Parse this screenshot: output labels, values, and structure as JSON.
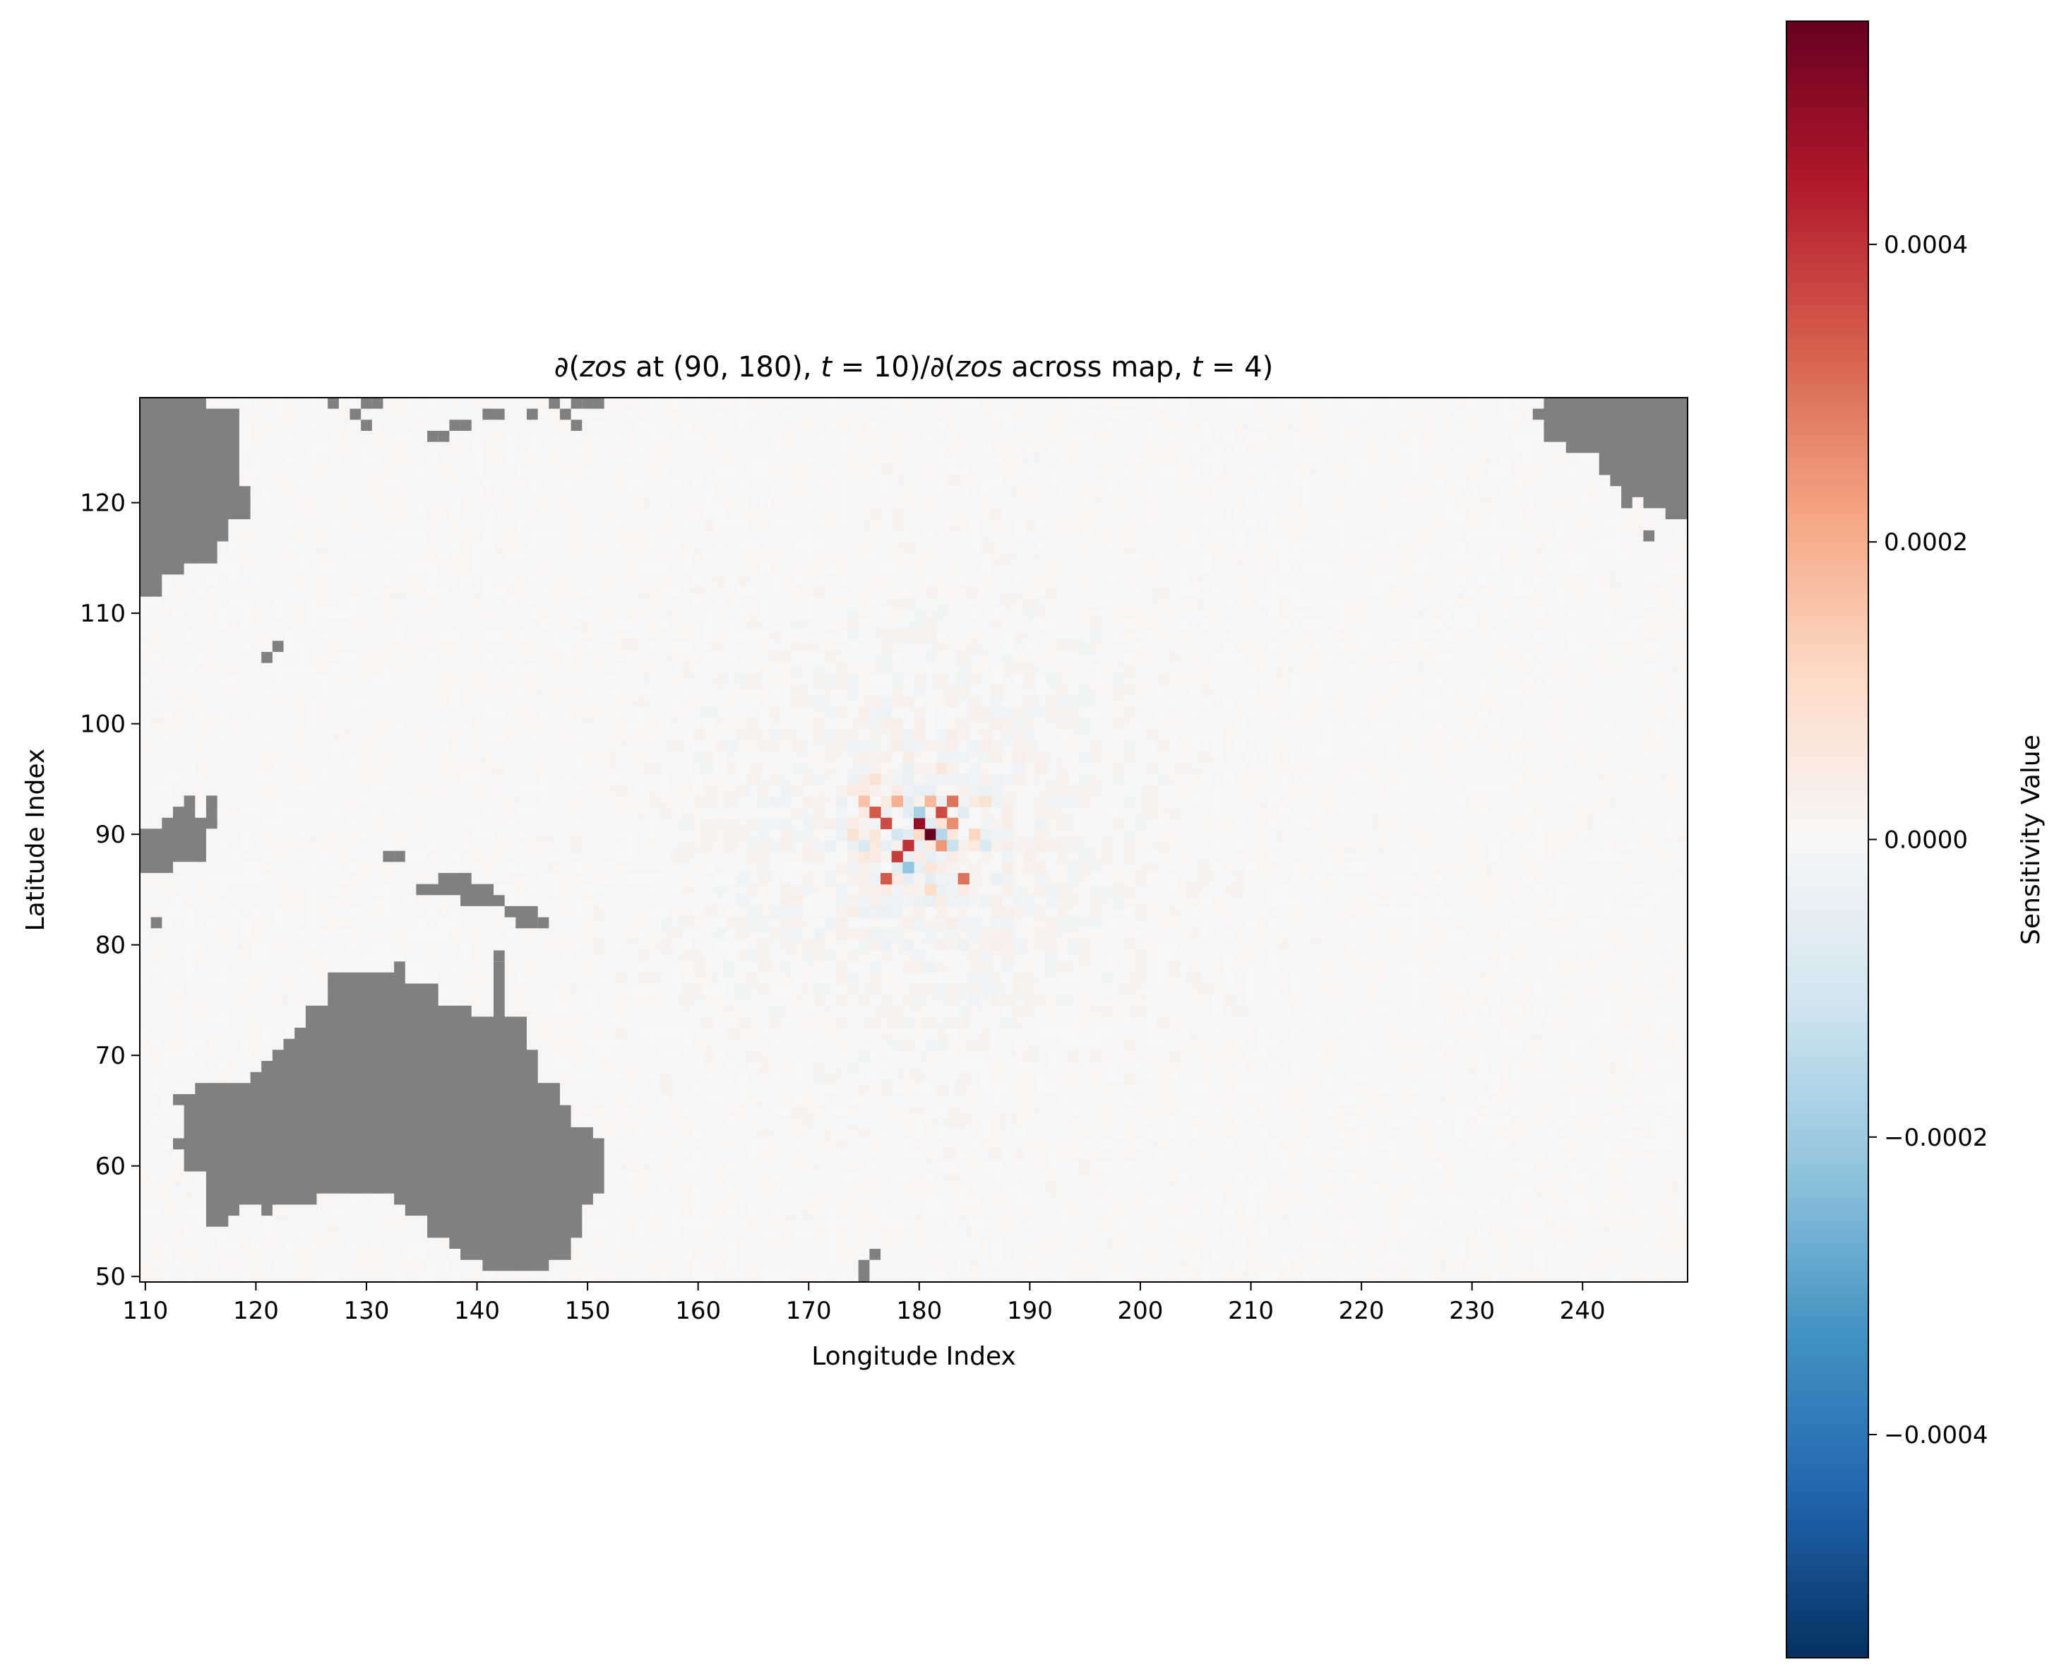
{
  "chart_data": {
    "type": "heatmap",
    "title_parts": {
      "p1": "∂(",
      "v1": "zos",
      "p2": " at ",
      "p3": "(90, 180), ",
      "v2": "t",
      "p4": " = 10)/∂(",
      "v3": "zos",
      "p5": " across map, ",
      "v4": "t",
      "p6": " = 4)"
    },
    "xlabel": "Longitude Index",
    "ylabel": "Latitude Index",
    "colorbar_label": "Sensitivity Value",
    "colormap": "RdBu_r",
    "land_color": "#808080",
    "xlim": [
      109.5,
      249.5
    ],
    "ylim": [
      49.5,
      129.5
    ],
    "clim": [
      -0.00055,
      0.00055
    ],
    "x_ticks": [
      110,
      120,
      130,
      140,
      150,
      160,
      170,
      180,
      190,
      200,
      210,
      220,
      230,
      240
    ],
    "y_ticks": [
      50,
      60,
      70,
      80,
      90,
      100,
      110,
      120
    ],
    "colorbar_ticks": [
      0.0004,
      0.0002,
      0.0,
      -0.0002,
      -0.0004
    ],
    "colorbar_tick_labels": [
      "0.0004",
      "0.0002",
      "0.0000",
      "−0.0002",
      "−0.0004"
    ],
    "source_point": {
      "lon": 180,
      "lat": 90
    },
    "sensitivity_hotspots": [
      {
        "lon": 181,
        "lat": 90,
        "value": 0.00055
      },
      {
        "lon": 180,
        "lat": 91,
        "value": 0.00048
      },
      {
        "lon": 179,
        "lat": 89,
        "value": 0.0004
      },
      {
        "lon": 178,
        "lat": 88,
        "value": 0.00038
      },
      {
        "lon": 177,
        "lat": 91,
        "value": 0.00036
      },
      {
        "lon": 176,
        "lat": 92,
        "value": 0.00034
      },
      {
        "lon": 182,
        "lat": 92,
        "value": 0.00036
      },
      {
        "lon": 183,
        "lat": 93,
        "value": 0.0003
      },
      {
        "lon": 183,
        "lat": 91,
        "value": 0.00026
      },
      {
        "lon": 182,
        "lat": 89,
        "value": 0.00024
      },
      {
        "lon": 184,
        "lat": 86,
        "value": 0.0003
      },
      {
        "lon": 177,
        "lat": 86,
        "value": 0.00034
      },
      {
        "lon": 178,
        "lat": 93,
        "value": 0.0002
      },
      {
        "lon": 175,
        "lat": 93,
        "value": 0.00016
      },
      {
        "lon": 181,
        "lat": 93,
        "value": 0.00018
      },
      {
        "lon": 185,
        "lat": 90,
        "value": 0.00012
      },
      {
        "lon": 179,
        "lat": 87,
        "value": -0.00022
      },
      {
        "lon": 180,
        "lat": 92,
        "value": -0.00018
      },
      {
        "lon": 182,
        "lat": 90,
        "value": -0.00016
      },
      {
        "lon": 183,
        "lat": 89,
        "value": -0.00012
      },
      {
        "lon": 178,
        "lat": 90,
        "value": -0.0001
      },
      {
        "lon": 175,
        "lat": 89,
        "value": -8e-05
      },
      {
        "lon": 186,
        "lat": 89,
        "value": -8e-05
      },
      {
        "lon": 184,
        "lat": 92,
        "value": -6e-05
      },
      {
        "lon": 181,
        "lat": 85,
        "value": 0.0001
      },
      {
        "lon": 176,
        "lat": 95,
        "value": 8e-05
      },
      {
        "lon": 182,
        "lat": 96,
        "value": 6e-05
      },
      {
        "lon": 174,
        "lat": 90,
        "value": 8e-05
      },
      {
        "lon": 186,
        "lat": 93,
        "value": 8e-05
      }
    ]
  }
}
